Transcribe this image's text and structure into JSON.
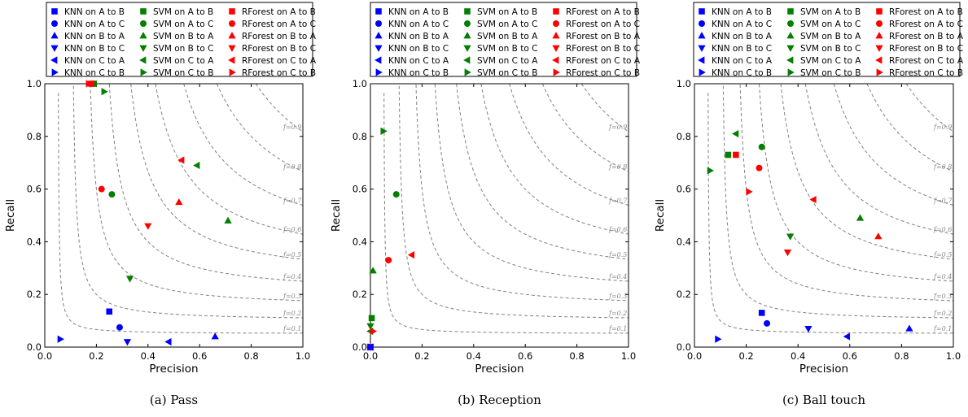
{
  "colors": {
    "KNN": "#0000ff",
    "SVM": "#007f00",
    "RForest": "#ff0000",
    "iso_f": "#808080"
  },
  "marker_shapes": {
    "A to B": "square",
    "A to C": "circle",
    "B to A": "triangle-up",
    "B to C": "triangle-down",
    "C to A": "triangle-left",
    "C to B": "triangle-right"
  },
  "chart_data": [
    {
      "type": "scatter",
      "caption": "(a) Pass",
      "xlabel": "Precision",
      "ylabel": "Recall",
      "xlim": [
        0,
        1
      ],
      "ylim": [
        0,
        1
      ],
      "x_ticks": [
        "0.0",
        "0.2",
        "0.4",
        "0.6",
        "0.8",
        "1.0"
      ],
      "y_ticks": [
        "0.0",
        "0.2",
        "0.4",
        "0.6",
        "0.8",
        "1.0"
      ],
      "iso_f_curves": [
        "f=0.1",
        "f=0.2",
        "f=0.3",
        "f=0.4",
        "f=0.5",
        "f=0.6",
        "f=0.7",
        "f=0.8",
        "f=0.9"
      ],
      "legend_placement": "top",
      "series": [
        {
          "name": "KNN on A to B",
          "x": 0.25,
          "y": 0.135
        },
        {
          "name": "SVM on A to B",
          "x": 0.19,
          "y": 1.0
        },
        {
          "name": "RForest on A to B",
          "x": 0.18,
          "y": 1.0
        },
        {
          "name": "KNN on A to C",
          "x": 0.29,
          "y": 0.075
        },
        {
          "name": "SVM on A to C",
          "x": 0.26,
          "y": 0.58
        },
        {
          "name": "RForest on A to C",
          "x": 0.22,
          "y": 0.6
        },
        {
          "name": "KNN on B to A",
          "x": 0.66,
          "y": 0.04
        },
        {
          "name": "SVM on B to A",
          "x": 0.71,
          "y": 0.48
        },
        {
          "name": "RForest on B to A",
          "x": 0.52,
          "y": 0.55
        },
        {
          "name": "KNN on B to C",
          "x": 0.32,
          "y": 0.02
        },
        {
          "name": "SVM on B to C",
          "x": 0.33,
          "y": 0.26
        },
        {
          "name": "RForest on B to C",
          "x": 0.4,
          "y": 0.46
        },
        {
          "name": "KNN on C to A",
          "x": 0.48,
          "y": 0.02
        },
        {
          "name": "SVM on C to A",
          "x": 0.59,
          "y": 0.69
        },
        {
          "name": "RForest on C to A",
          "x": 0.53,
          "y": 0.71
        },
        {
          "name": "KNN on C to B",
          "x": 0.06,
          "y": 0.03
        },
        {
          "name": "SVM on C to B",
          "x": 0.23,
          "y": 0.97
        },
        {
          "name": "RForest on C to B",
          "x": 0.17,
          "y": 1.0
        }
      ]
    },
    {
      "type": "scatter",
      "caption": "(b) Reception",
      "xlabel": "Precision",
      "ylabel": "Recall",
      "xlim": [
        0,
        1
      ],
      "ylim": [
        0,
        1
      ],
      "x_ticks": [
        "0.0",
        "0.2",
        "0.4",
        "0.6",
        "0.8",
        "1.0"
      ],
      "y_ticks": [
        "0.0",
        "0.2",
        "0.4",
        "0.6",
        "0.8",
        "1.0"
      ],
      "iso_f_curves": [
        "f=0.1",
        "f=0.2",
        "f=0.3",
        "f=0.4",
        "f=0.5",
        "f=0.6",
        "f=0.7",
        "f=0.8",
        "f=0.9"
      ],
      "legend_placement": "top",
      "series": [
        {
          "name": "KNN on A to B",
          "x": 0.0,
          "y": 0.0
        },
        {
          "name": "SVM on A to B",
          "x": 0.005,
          "y": 0.11
        },
        {
          "name": "RForest on A to B",
          "x": 0.0,
          "y": 0.0
        },
        {
          "name": "KNN on A to C",
          "x": 0.0,
          "y": 0.0
        },
        {
          "name": "SVM on A to C",
          "x": 0.1,
          "y": 0.58
        },
        {
          "name": "RForest on A to C",
          "x": 0.07,
          "y": 0.33
        },
        {
          "name": "KNN on B to A",
          "x": 0.0,
          "y": 0.0
        },
        {
          "name": "SVM on B to A",
          "x": 0.01,
          "y": 0.29
        },
        {
          "name": "RForest on B to A",
          "x": 0.0,
          "y": 0.0
        },
        {
          "name": "KNN on B to C",
          "x": 0.0,
          "y": 0.0
        },
        {
          "name": "SVM on B to C",
          "x": 0.0,
          "y": 0.08
        },
        {
          "name": "RForest on B to C",
          "x": 0.0,
          "y": 0.0
        },
        {
          "name": "KNN on C to A",
          "x": 0.0,
          "y": 0.0
        },
        {
          "name": "SVM on C to A",
          "x": 0.0,
          "y": 0.06
        },
        {
          "name": "RForest on C to A",
          "x": 0.16,
          "y": 0.35
        },
        {
          "name": "KNN on C to B",
          "x": 0.0,
          "y": 0.0
        },
        {
          "name": "SVM on C to B",
          "x": 0.05,
          "y": 0.82
        },
        {
          "name": "RForest on C to B",
          "x": 0.01,
          "y": 0.06
        }
      ]
    },
    {
      "type": "scatter",
      "caption": "(c) Ball touch",
      "xlabel": "Precision",
      "ylabel": "Recall",
      "xlim": [
        0,
        1
      ],
      "ylim": [
        0,
        1
      ],
      "x_ticks": [
        "0.0",
        "0.2",
        "0.4",
        "0.6",
        "0.8",
        "1.0"
      ],
      "y_ticks": [
        "0.0",
        "0.2",
        "0.4",
        "0.6",
        "0.8",
        "1.0"
      ],
      "iso_f_curves": [
        "f=0.1",
        "f=0.2",
        "f=0.3",
        "f=0.4",
        "f=0.5",
        "f=0.6",
        "f=0.7",
        "f=0.8",
        "f=0.9"
      ],
      "legend_placement": "top",
      "series": [
        {
          "name": "KNN on A to B",
          "x": 0.26,
          "y": 0.13
        },
        {
          "name": "SVM on A to B",
          "x": 0.13,
          "y": 0.73
        },
        {
          "name": "RForest on A to B",
          "x": 0.16,
          "y": 0.73
        },
        {
          "name": "KNN on A to C",
          "x": 0.28,
          "y": 0.09
        },
        {
          "name": "SVM on A to C",
          "x": 0.26,
          "y": 0.76
        },
        {
          "name": "RForest on A to C",
          "x": 0.25,
          "y": 0.68
        },
        {
          "name": "KNN on B to A",
          "x": 0.83,
          "y": 0.07
        },
        {
          "name": "SVM on B to A",
          "x": 0.64,
          "y": 0.49
        },
        {
          "name": "RForest on B to A",
          "x": 0.71,
          "y": 0.42
        },
        {
          "name": "KNN on B to C",
          "x": 0.44,
          "y": 0.07
        },
        {
          "name": "SVM on B to C",
          "x": 0.37,
          "y": 0.42
        },
        {
          "name": "RForest on B to C",
          "x": 0.36,
          "y": 0.36
        },
        {
          "name": "KNN on C to A",
          "x": 0.59,
          "y": 0.04
        },
        {
          "name": "SVM on C to A",
          "x": 0.16,
          "y": 0.81
        },
        {
          "name": "RForest on C to A",
          "x": 0.46,
          "y": 0.56
        },
        {
          "name": "KNN on C to B",
          "x": 0.09,
          "y": 0.03
        },
        {
          "name": "SVM on C to B",
          "x": 0.06,
          "y": 0.67
        },
        {
          "name": "RForest on C to B",
          "x": 0.21,
          "y": 0.59
        }
      ]
    }
  ]
}
